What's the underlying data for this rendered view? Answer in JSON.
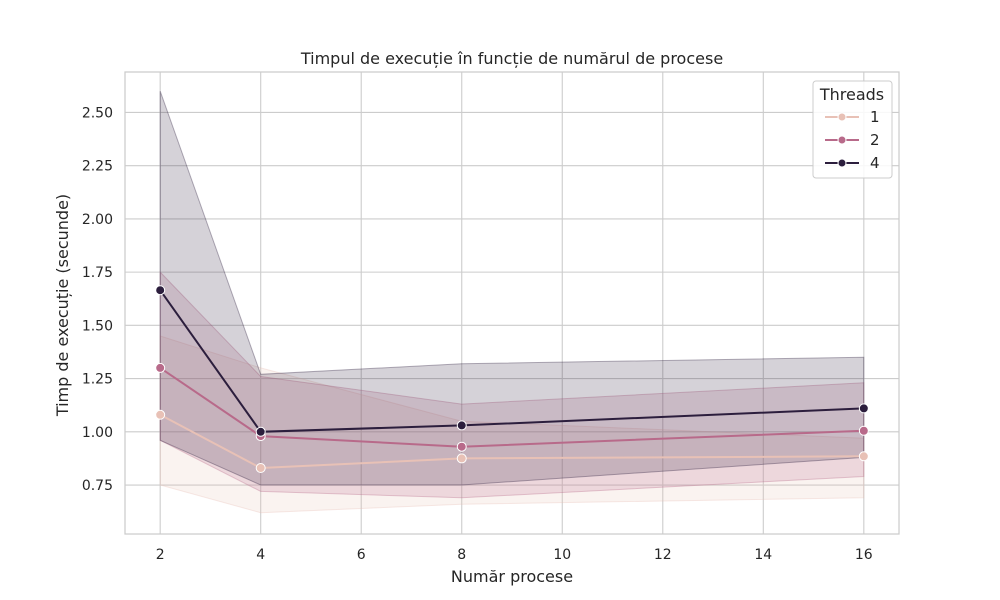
{
  "chart_data": {
    "type": "line",
    "title": "Timpul de execuție în funcție de numărul de procese",
    "xlabel": "Număr procese",
    "ylabel": "Timp de execuție (secunde)",
    "xlim": [
      1.3,
      16.7
    ],
    "ylim": [
      0.52,
      2.69
    ],
    "xticks": [
      2,
      4,
      6,
      8,
      10,
      12,
      14,
      16
    ],
    "yticks": [
      0.75,
      1.0,
      1.25,
      1.5,
      1.75,
      2.0,
      2.25,
      2.5
    ],
    "ytick_labels": [
      "0.75",
      "1.00",
      "1.25",
      "1.50",
      "1.75",
      "2.00",
      "2.25",
      "2.50"
    ],
    "grid": true,
    "x": [
      2,
      4,
      8,
      16
    ],
    "legend": {
      "title": "Threads",
      "placement": "top-right"
    },
    "series": [
      {
        "name": "1",
        "color": "#e8c1b6",
        "values": [
          1.08,
          0.83,
          0.875,
          0.885
        ],
        "ci_low": [
          0.75,
          0.62,
          0.66,
          0.69
        ],
        "ci_high": [
          1.45,
          1.3,
          1.05,
          0.97
        ]
      },
      {
        "name": "2",
        "color": "#b86a8a",
        "values": [
          1.3,
          0.98,
          0.93,
          1.005
        ],
        "ci_low": [
          0.96,
          0.72,
          0.69,
          0.79
        ],
        "ci_high": [
          1.75,
          1.26,
          1.13,
          1.23
        ]
      },
      {
        "name": "4",
        "color": "#2c1e3d",
        "values": [
          1.665,
          1.0,
          1.03,
          1.11
        ],
        "ci_low": [
          0.96,
          0.75,
          0.75,
          0.88
        ],
        "ci_high": [
          2.6,
          1.27,
          1.32,
          1.35
        ]
      }
    ]
  }
}
